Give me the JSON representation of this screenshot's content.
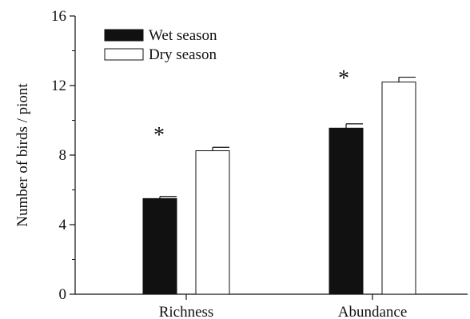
{
  "chart_data": {
    "type": "bar",
    "title": "",
    "xlabel": "",
    "ylabel": "Number of birds / piont",
    "categories": [
      "Richness",
      "Abundance"
    ],
    "series": [
      {
        "name": "Wet season",
        "values": [
          5.5,
          9.55
        ],
        "error": [
          0.12,
          0.25
        ],
        "fill": "#111111"
      },
      {
        "name": "Dry season",
        "values": [
          8.25,
          12.2
        ],
        "error": [
          0.2,
          0.28
        ],
        "fill": "#ffffff"
      }
    ],
    "ylim": [
      0,
      16
    ],
    "yticks": [
      0,
      4,
      8,
      12,
      16
    ],
    "ytick_labels": [
      "0",
      "4",
      "8",
      "12",
      "16"
    ],
    "grid": false,
    "legend_position": "top-left",
    "annotations": [
      "*",
      "*"
    ],
    "colors": {
      "axis": "#111111",
      "wet_bar": "#111111",
      "dry_bar": "#ffffff",
      "bar_edge": "#111111"
    }
  }
}
